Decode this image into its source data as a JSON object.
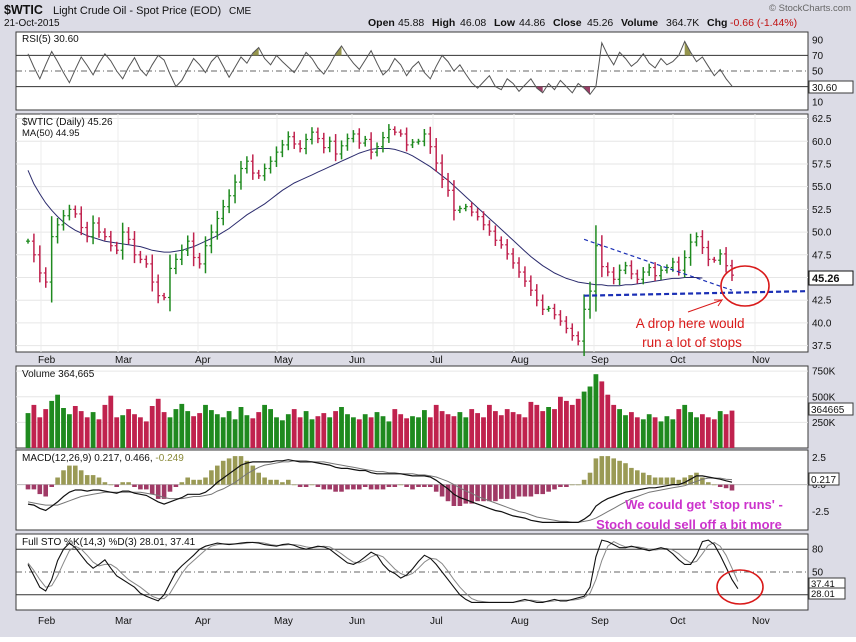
{
  "header": {
    "symbol": "$WTIC",
    "name": "Light Crude Oil - Spot Price (EOD)",
    "exchange": "CME",
    "date": "21-Oct-2015",
    "open_label": "Open",
    "open": "45.88",
    "high_label": "High",
    "high": "46.08",
    "low_label": "Low",
    "low": "44.86",
    "close_label": "Close",
    "close": "45.26",
    "volume_label": "Volume",
    "volume": "364.7K",
    "chg_label": "Chg",
    "chg": "-0.66 (-1.44%)",
    "watermark": "© StockCharts.com"
  },
  "colors": {
    "up": "#1f8a1f",
    "down": "#c0224e",
    "panel_bg": "#ffffff",
    "frame": "#3a3a3a",
    "rsi_overbought_fill": "#8a8a3a",
    "rsi_oversold_fill": "#8e2a55",
    "ma_line": "#2c2c6e",
    "trend_line": "#1a2fb5",
    "annotation_red": "#d91a1a",
    "annotation_magenta": "#cc33cc",
    "outer_bg": "#dcdce6"
  },
  "chart_data": {
    "type": "financial-multi-panel",
    "x_tick_labels": [
      "Feb",
      "Mar",
      "Apr",
      "May",
      "Jun",
      "Jul",
      "Aug",
      "Sep",
      "Oct",
      "Nov"
    ],
    "panels": [
      {
        "id": "rsi",
        "title": "RSI(5) 30.60",
        "series_label": "RSI(5)",
        "last_value": "30.60",
        "y_ticks": [
          "90",
          "70",
          "50",
          "30",
          "10"
        ],
        "ylim": [
          0,
          100
        ],
        "reference_lines": [
          70,
          50,
          30
        ],
        "values": [
          72,
          55,
          40,
          58,
          75,
          62,
          48,
          35,
          52,
          68,
          57,
          45,
          60,
          72,
          63,
          50,
          40,
          55,
          67,
          52,
          44,
          58,
          70,
          64,
          46,
          30,
          38,
          52,
          66,
          58,
          48,
          62,
          70,
          56,
          42,
          55,
          68,
          60,
          73,
          80,
          66,
          58,
          70,
          62,
          55,
          48,
          60,
          74,
          66,
          54,
          46,
          58,
          72,
          82,
          70,
          60,
          52,
          64,
          76,
          60,
          45,
          52,
          66,
          58,
          44,
          55,
          62,
          48,
          40,
          56,
          70,
          62,
          50,
          58,
          46,
          35,
          28,
          36,
          44,
          30,
          26,
          40,
          34,
          24,
          32,
          40,
          28,
          22,
          34,
          26,
          38,
          30,
          22,
          34,
          28,
          20,
          30,
          86,
          70,
          58,
          74,
          66,
          56,
          62,
          72,
          60,
          54,
          66,
          58,
          62,
          70,
          88,
          74,
          62,
          68,
          56,
          44,
          52,
          40,
          30.6
        ]
      },
      {
        "id": "price",
        "title": "$WTIC (Daily) 45.26",
        "ma_label": "MA(50) 44.95",
        "last_price_tag": "45.26",
        "y_ticks": [
          "62.5",
          "60.0",
          "57.5",
          "55.0",
          "52.5",
          "50.0",
          "47.5",
          "45.0",
          "42.5",
          "40.0",
          "37.5"
        ],
        "ylim": [
          36.8,
          63.0
        ],
        "close": [
          49,
          47.5,
          45.5,
          44.5,
          49.5,
          50.8,
          51.8,
          52.5,
          52.0,
          50.5,
          49.5,
          51,
          50,
          49.5,
          48.5,
          48,
          50,
          49.2,
          47.5,
          47,
          46.5,
          44.5,
          43,
          42.8,
          46,
          47,
          48,
          49,
          47.2,
          46.5,
          48.5,
          50,
          51.5,
          52.8,
          54,
          55.5,
          57,
          57.8,
          56.5,
          56.2,
          57,
          57.8,
          58.8,
          59.6,
          60.5,
          59.7,
          59.2,
          60.2,
          61,
          60.3,
          59.3,
          60,
          58.6,
          59.5,
          60.3,
          60.8,
          59.8,
          60.2,
          58.8,
          59.4,
          60.4,
          61.3,
          61.0,
          60.8,
          59.6,
          59.9,
          60.0,
          60.8,
          59.4,
          57.6,
          55.8,
          54.6,
          52.4,
          52.6,
          52.8,
          52.2,
          51.7,
          50.8,
          50.1,
          49.1,
          48.6,
          47.6,
          46.6,
          45.6,
          44.6,
          43.6,
          42.5,
          41.5,
          41.6,
          40.9,
          40.2,
          39.4,
          38.6,
          38.0,
          41.5,
          43.5,
          48.5,
          46.2,
          45.6,
          44.8,
          45.8,
          46.3,
          45.4,
          44.8,
          45.6,
          46.1,
          45.2,
          45.8,
          46.1,
          46.7,
          45.8,
          47.2,
          48.9,
          49.5,
          48.3,
          47.0,
          46.9,
          47.6,
          46.3,
          45.26
        ],
        "ma50": [
          56.8,
          55.3,
          54.2,
          53.2,
          52.4,
          51.7,
          51.1,
          50.6,
          50.2,
          49.9,
          49.6,
          49.4,
          49.2,
          49.0,
          48.9,
          48.8,
          48.7,
          48.6,
          48.5,
          48.4,
          48.2,
          48.0,
          47.9,
          47.8,
          47.8,
          47.9,
          48.0,
          48.2,
          48.4,
          48.7,
          49.0,
          49.3,
          49.6,
          50.0,
          50.4,
          50.9,
          51.4,
          51.9,
          52.3,
          52.7,
          53.1,
          53.6,
          54.1,
          54.6,
          55.0,
          55.4,
          55.7,
          56.0,
          56.3,
          56.6,
          56.9,
          57.2,
          57.5,
          57.8,
          58.1,
          58.4,
          58.7,
          58.9,
          59.1,
          59.2,
          59.2,
          59.2,
          59.1,
          58.9,
          58.7,
          58.4,
          58.0,
          57.6,
          57.2,
          56.7,
          56.2,
          55.7,
          55.1,
          54.5,
          53.9,
          53.3,
          52.7,
          52.1,
          51.5,
          50.9,
          50.3,
          49.7,
          49.1,
          48.5,
          47.9,
          47.3,
          46.8,
          46.3,
          45.9,
          45.5,
          45.2,
          44.9,
          44.7,
          44.5,
          44.4,
          44.3,
          44.2,
          44.2,
          44.1,
          44.1,
          44.1,
          44.2,
          44.2,
          44.3,
          44.4,
          44.5,
          44.6,
          44.7,
          44.8,
          44.9,
          44.9,
          45.0,
          45.0,
          45.0,
          44.95
        ],
        "trendlines": [
          {
            "name": "support",
            "from": [
              94,
              43.0
            ],
            "to": [
              119,
              43.0
            ]
          },
          {
            "name": "resistance",
            "from": [
              94,
              49.2
            ],
            "to": [
              119,
              43.6
            ]
          }
        ],
        "annotation": "A drop here would run a lot of stops"
      },
      {
        "id": "volume",
        "title": "Volume 364,665",
        "last_value_tag": "364665",
        "y_ticks": [
          "750K",
          "500K",
          "250K"
        ],
        "ylim": [
          0,
          800000
        ],
        "values": [
          340000,
          420000,
          300000,
          380000,
          460000,
          520000,
          390000,
          330000,
          410000,
          360000,
          300000,
          350000,
          280000,
          420000,
          510000,
          300000,
          320000,
          380000,
          330000,
          300000,
          260000,
          410000,
          480000,
          350000,
          300000,
          380000,
          430000,
          360000,
          310000,
          340000,
          420000,
          370000,
          330000,
          300000,
          360000,
          280000,
          400000,
          320000,
          290000,
          350000,
          420000,
          380000,
          300000,
          270000,
          330000,
          380000,
          300000,
          360000,
          280000,
          310000,
          340000,
          300000,
          360000,
          400000,
          330000,
          300000,
          280000,
          330000,
          300000,
          350000,
          310000,
          260000,
          380000,
          330000,
          290000,
          310000,
          300000,
          370000,
          300000,
          420000,
          360000,
          330000,
          310000,
          350000,
          300000,
          380000,
          340000,
          300000,
          420000,
          360000,
          320000,
          380000,
          350000,
          330000,
          300000,
          450000,
          420000,
          360000,
          400000,
          380000,
          500000,
          460000,
          420000,
          480000,
          550000,
          600000,
          720000,
          650000,
          520000,
          420000,
          380000,
          320000,
          350000,
          300000,
          280000,
          330000,
          300000,
          260000,
          310000,
          280000,
          380000,
          420000,
          350000,
          300000,
          330000,
          300000,
          280000,
          360000,
          330000,
          364665
        ]
      },
      {
        "id": "macd",
        "title": "MACD(12,26,9) 0.217, 0.466, -0.249",
        "histogram_label": "-0.249",
        "last_value_tag": "0.217",
        "y_ticks": [
          "2.5",
          "0.0",
          "-2.5"
        ],
        "ylim": [
          -4.2,
          3.2
        ],
        "macd": [
          -1.8,
          -1.9,
          -2.2,
          -2.4,
          -2.0,
          -1.6,
          -1.1,
          -0.7,
          -0.5,
          -0.5,
          -0.6,
          -0.5,
          -0.5,
          -0.6,
          -0.7,
          -0.8,
          -0.6,
          -0.6,
          -0.8,
          -0.9,
          -1.0,
          -1.3,
          -1.6,
          -1.8,
          -1.6,
          -1.4,
          -1.2,
          -0.9,
          -0.9,
          -0.9,
          -0.7,
          -0.3,
          0.2,
          0.6,
          1.0,
          1.4,
          1.8,
          2.0,
          2.1,
          2.1,
          2.1,
          2.1,
          2.2,
          2.2,
          2.3,
          2.2,
          2.1,
          2.1,
          2.1,
          2.0,
          1.9,
          1.8,
          1.6,
          1.5,
          1.5,
          1.4,
          1.3,
          1.3,
          1.1,
          1.0,
          1.0,
          1.0,
          1.0,
          1.0,
          0.9,
          0.8,
          0.8,
          0.8,
          0.7,
          0.4,
          0.0,
          -0.4,
          -0.9,
          -1.2,
          -1.4,
          -1.6,
          -1.8,
          -2.0,
          -2.2,
          -2.4,
          -2.5,
          -2.7,
          -2.9,
          -3.0,
          -3.1,
          -3.3,
          -3.4,
          -3.5,
          -3.5,
          -3.5,
          -3.5,
          -3.5,
          -3.5,
          -3.5,
          -3.2,
          -2.8,
          -2.0,
          -1.6,
          -1.3,
          -1.1,
          -0.9,
          -0.7,
          -0.6,
          -0.5,
          -0.4,
          -0.3,
          -0.3,
          -0.2,
          -0.1,
          0.0,
          0.0,
          0.2,
          0.5,
          0.8,
          0.8,
          0.7,
          0.6,
          0.5,
          0.35,
          0.217
        ],
        "signal": [
          -1.6,
          -1.7,
          -1.8,
          -1.9,
          -1.9,
          -1.9,
          -1.7,
          -1.5,
          -1.3,
          -1.1,
          -1.0,
          -0.9,
          -0.8,
          -0.7,
          -0.7,
          -0.7,
          -0.7,
          -0.7,
          -0.7,
          -0.7,
          -0.8,
          -0.9,
          -1.0,
          -1.2,
          -1.3,
          -1.3,
          -1.3,
          -1.2,
          -1.1,
          -1.1,
          -1.0,
          -0.9,
          -0.6,
          -0.4,
          -0.1,
          0.2,
          0.6,
          1.0,
          1.3,
          1.6,
          1.8,
          1.9,
          2.0,
          2.1,
          2.1,
          2.2,
          2.2,
          2.2,
          2.1,
          2.1,
          2.1,
          2.0,
          1.9,
          1.8,
          1.7,
          1.6,
          1.5,
          1.4,
          1.3,
          1.2,
          1.2,
          1.1,
          1.1,
          1.0,
          1.0,
          1.0,
          0.9,
          0.9,
          0.8,
          0.7,
          0.5,
          0.3,
          0.0,
          -0.3,
          -0.6,
          -0.8,
          -1.1,
          -1.3,
          -1.5,
          -1.7,
          -1.9,
          -2.1,
          -2.3,
          -2.5,
          -2.6,
          -2.8,
          -3.0,
          -3.1,
          -3.2,
          -3.3,
          -3.4,
          -3.4,
          -3.5,
          -3.5,
          -3.4,
          -3.3,
          -3.1,
          -2.8,
          -2.5,
          -2.2,
          -1.9,
          -1.6,
          -1.3,
          -1.1,
          -0.9,
          -0.7,
          -0.6,
          -0.5,
          -0.4,
          -0.3,
          -0.2,
          -0.1,
          0.1,
          0.3,
          0.5,
          0.6,
          0.6,
          0.6,
          0.5,
          0.466
        ],
        "annotation_line1": "We could get 'stop runs' -",
        "annotation_line2": "Stoch could sell off a bit more"
      },
      {
        "id": "sto",
        "title": "Full STO %K(14,3) %D(3) 28.01, 37.41",
        "tag_k": "28.01",
        "tag_d": "37.41",
        "y_ticks": [
          "80",
          "50",
          "20"
        ],
        "ylim": [
          0,
          100
        ],
        "reference_lines": [
          80,
          50,
          20
        ],
        "k": [
          60,
          45,
          30,
          25,
          40,
          65,
          80,
          88,
          82,
          72,
          62,
          55,
          60,
          66,
          55,
          45,
          40,
          35,
          30,
          22,
          18,
          15,
          12,
          20,
          35,
          50,
          58,
          65,
          72,
          80,
          84,
          86,
          88,
          87,
          86,
          87,
          88,
          89,
          89,
          88,
          86,
          85,
          84,
          86,
          87,
          85,
          82,
          80,
          82,
          84,
          83,
          80,
          74,
          68,
          62,
          60,
          64,
          70,
          76,
          72,
          60,
          52,
          48,
          42,
          46,
          54,
          64,
          72,
          68,
          60,
          50,
          40,
          30,
          20,
          14,
          10,
          10,
          10,
          10,
          10,
          10,
          10,
          10,
          12,
          14,
          12,
          10,
          10,
          12,
          14,
          12,
          12,
          14,
          16,
          18,
          30,
          70,
          92,
          90,
          86,
          82,
          82,
          84,
          82,
          80,
          78,
          80,
          82,
          80,
          74,
          66,
          60,
          60,
          72,
          90,
          92,
          86,
          72,
          56,
          40,
          28.01
        ],
        "d": [
          62,
          52,
          40,
          30,
          32,
          45,
          62,
          78,
          84,
          80,
          72,
          63,
          58,
          60,
          60,
          55,
          47,
          40,
          35,
          30,
          24,
          18,
          15,
          15,
          22,
          35,
          48,
          58,
          65,
          72,
          79,
          84,
          86,
          87,
          87,
          87,
          87,
          88,
          89,
          89,
          88,
          86,
          85,
          85,
          86,
          86,
          85,
          83,
          82,
          83,
          84,
          83,
          79,
          74,
          68,
          63,
          62,
          65,
          70,
          73,
          70,
          62,
          54,
          48,
          45,
          48,
          55,
          63,
          68,
          67,
          61,
          51,
          40,
          30,
          22,
          15,
          12,
          11,
          10,
          10,
          10,
          10,
          10,
          11,
          12,
          13,
          12,
          11,
          11,
          12,
          13,
          13,
          13,
          14,
          16,
          22,
          40,
          65,
          84,
          90,
          86,
          83,
          83,
          83,
          82,
          80,
          79,
          80,
          81,
          79,
          74,
          67,
          62,
          64,
          74,
          85,
          89,
          84,
          72,
          55,
          37.41
        ],
        "circle_annotation": true
      }
    ]
  }
}
